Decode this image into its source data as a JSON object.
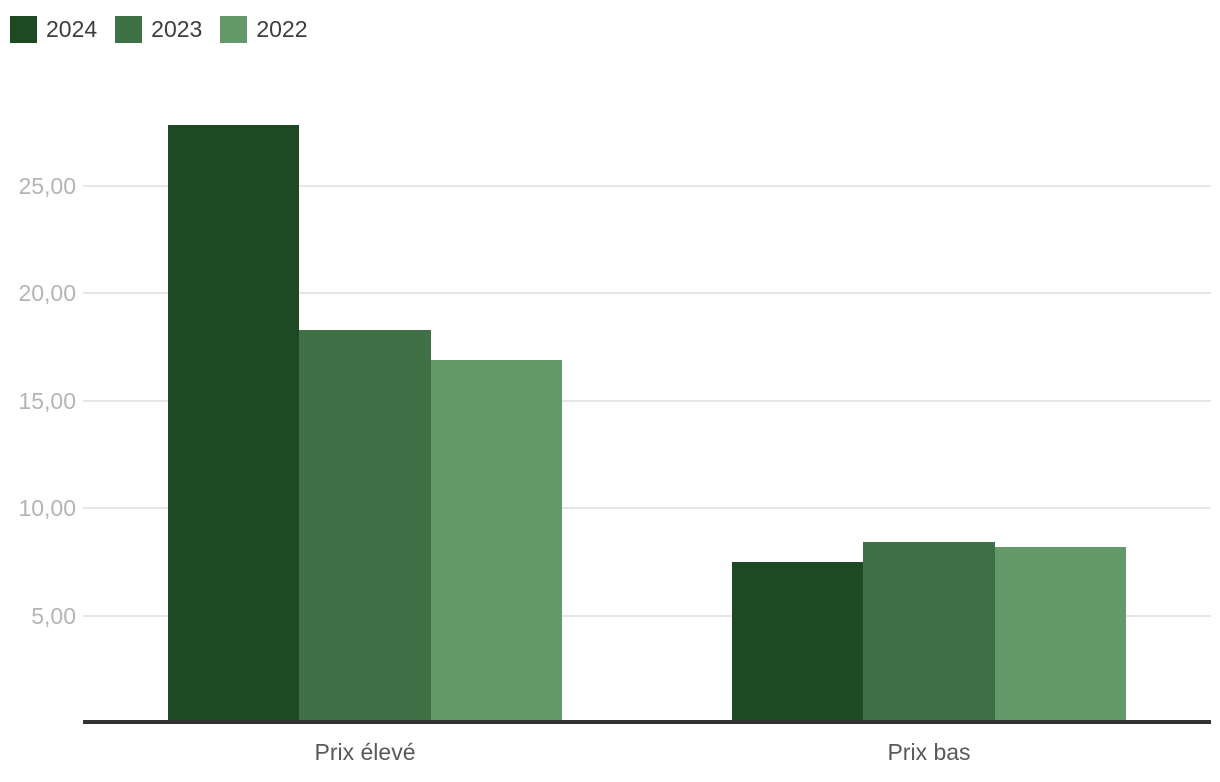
{
  "chart_data": {
    "type": "bar",
    "title": "",
    "categories": [
      "Prix élevé",
      "Prix bas"
    ],
    "series": [
      {
        "name": "2024",
        "color": "#1d4a22",
        "values": [
          27.8,
          7.5
        ]
      },
      {
        "name": "2023",
        "color": "#3f7046",
        "values": [
          18.3,
          8.4
        ]
      },
      {
        "name": "2022",
        "color": "#649a69",
        "values": [
          16.9,
          8.2
        ]
      }
    ],
    "xlabel": "",
    "ylabel": "",
    "ylim": [
      0,
      30
    ],
    "yticks": [
      {
        "value": 5,
        "label": "5,00"
      },
      {
        "value": 10,
        "label": "10,00"
      },
      {
        "value": 15,
        "label": "15,00"
      },
      {
        "value": 20,
        "label": "20,00"
      },
      {
        "value": 25,
        "label": "25,00"
      }
    ],
    "grid": true,
    "legend_position": "top-left",
    "group_width_ratio": 0.7,
    "colors": {
      "background": "#ffffff",
      "gridline": "#e6e6e6",
      "axis_line": "#333333",
      "tick_label": "#b5b5b5",
      "category_label": "#595959",
      "legend_label": "#3d3d3d"
    }
  }
}
